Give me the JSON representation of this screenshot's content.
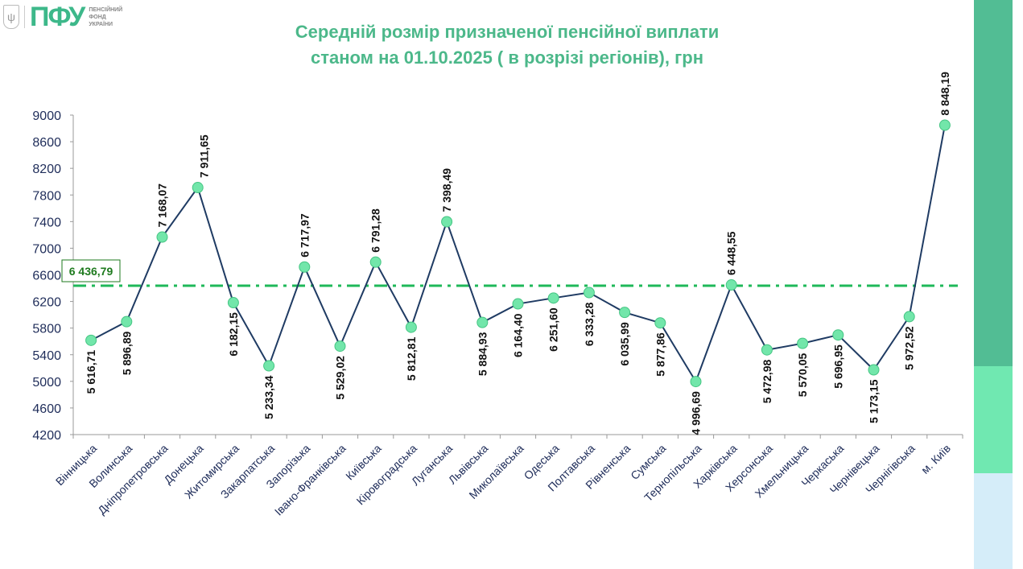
{
  "logo": {
    "mark": "ПФУ",
    "subtitle_lines": [
      "ПЕНСІЙНИЙ",
      "ФОНД",
      "УКРАЇНИ"
    ]
  },
  "title_lines": [
    "Середній розмір призначеної пенсійної виплати",
    "станом на 01.10.2025 ( в розрізі регіонів), грн"
  ],
  "side_colors": [
    "#52bd94",
    "#70e8b1",
    "#d5edf9"
  ],
  "chart_data": {
    "type": "line",
    "title": "Середній розмір призначеної пенсійної виплати станом на 01.10.2025 ( в розрізі регіонів), грн",
    "categories": [
      "Вінницька",
      "Волинська",
      "Дніпропетровська",
      "Донецька",
      "Житомирська",
      "Закарпатська",
      "Запорізька",
      "Івано-Франківська",
      "Київська",
      "Кіровоградська",
      "Луганська",
      "Львівська",
      "Миколаївська",
      "Одеська",
      "Полтавська",
      "Рівненська",
      "Сумська",
      "Тернопільська",
      "Харківська",
      "Херсонська",
      "Хмельницька",
      "Черкаська",
      "Чернівецька",
      "Чернігівська",
      "м. Київ"
    ],
    "values": [
      5616.71,
      5896.89,
      7168.07,
      7911.65,
      6182.15,
      5233.34,
      6717.97,
      5529.02,
      6791.28,
      5812.81,
      7398.49,
      5884.93,
      6164.4,
      6251.6,
      6333.28,
      6035.99,
      5877.86,
      4996.69,
      6448.55,
      5472.98,
      5570.05,
      5696.95,
      5173.15,
      5972.52,
      8848.19
    ],
    "value_labels": [
      "5 616,71",
      "5 896,89",
      "7 168,07",
      "7 911,65",
      "6 182,15",
      "5 233,34",
      "6 717,97",
      "5 529,02",
      "6 791,28",
      "5 812,81",
      "7 398,49",
      "5 884,93",
      "6 164,40",
      "6 251,60",
      "6 333,28",
      "6 035,99",
      "5 877,86",
      "4 996,69",
      "6 448,55",
      "5 472,98",
      "5 570,05",
      "5 696,95",
      "5 173,15",
      "5 972,52",
      "8 848,19"
    ],
    "label_above": [
      false,
      false,
      true,
      true,
      false,
      false,
      true,
      false,
      true,
      false,
      true,
      false,
      false,
      false,
      false,
      false,
      false,
      false,
      true,
      false,
      false,
      false,
      false,
      false,
      true
    ],
    "average": {
      "value": 6436.79,
      "label": "6 436,79"
    },
    "yticks": [
      4200,
      4600,
      5000,
      5400,
      5800,
      6200,
      6600,
      7000,
      7400,
      7800,
      8200,
      8600,
      9000
    ],
    "ylim": [
      4200,
      9000
    ],
    "grid": false,
    "colors": {
      "line": "#1f3b63",
      "marker": "#72e6aa",
      "marker_stroke": "#45c583",
      "average": "#1fb85a",
      "axis_text": "#1f2d5a",
      "avg_label": "#1e7a1e"
    }
  }
}
